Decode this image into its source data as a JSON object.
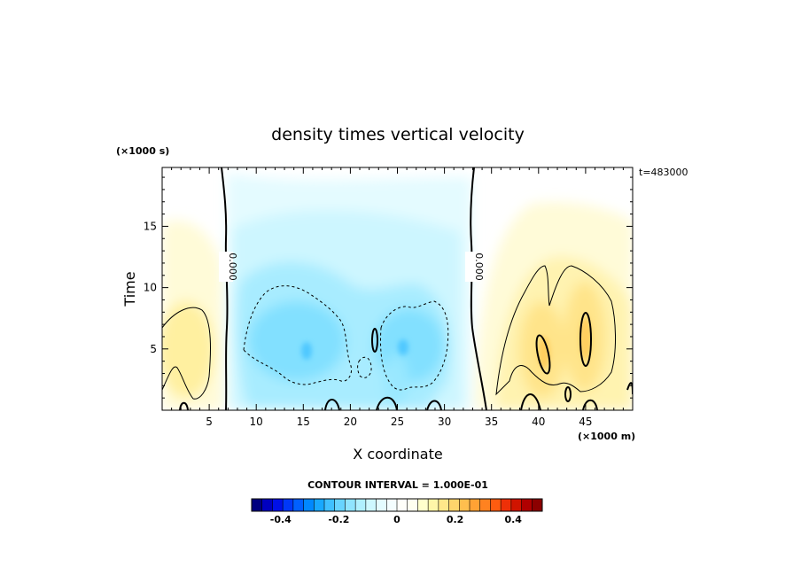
{
  "chart_data": {
    "type": "heatmap",
    "title": "density times vertical velocity",
    "xlabel": "X coordinate",
    "ylabel": "Time",
    "x_unit_label": "(×1000 m)",
    "y_unit_label": "(×1000 s)",
    "annotation_time": "t=483000",
    "contour_interval_label": "CONTOUR INTERVAL = 1.000E-01",
    "xlim": [
      0,
      50
    ],
    "ylim": [
      0,
      19.8
    ],
    "x_ticks": [
      {
        "value": 5,
        "label": "5"
      },
      {
        "value": 10,
        "label": "10"
      },
      {
        "value": 15,
        "label": "15"
      },
      {
        "value": 20,
        "label": "20"
      },
      {
        "value": 25,
        "label": "25"
      },
      {
        "value": 30,
        "label": "30"
      },
      {
        "value": 35,
        "label": "35"
      },
      {
        "value": 40,
        "label": "40"
      },
      {
        "value": 45,
        "label": "45"
      }
    ],
    "y_ticks": [
      {
        "value": 5,
        "label": "5"
      },
      {
        "value": 10,
        "label": "10"
      },
      {
        "value": 15,
        "label": "15"
      }
    ],
    "zero_contour_labels": [
      {
        "x": 7.0,
        "y": 11.8,
        "label": "0.000"
      },
      {
        "x": 32.9,
        "y": 11.8,
        "label": "0.000"
      }
    ],
    "colorbar": {
      "vmin": -0.5,
      "vmax": 0.5,
      "ticks": [
        {
          "value": -0.4,
          "label": "-0.4"
        },
        {
          "value": -0.2,
          "label": "-0.2"
        },
        {
          "value": 0,
          "label": "0"
        },
        {
          "value": 0.2,
          "label": "0.2"
        },
        {
          "value": 0.4,
          "label": "0.4"
        }
      ],
      "colors": [
        "#000080",
        "#0000c0",
        "#0010e8",
        "#0038f8",
        "#0060ff",
        "#0088ff",
        "#18a8ff",
        "#40c0ff",
        "#68d4ff",
        "#90e4ff",
        "#b0f0ff",
        "#cef8ff",
        "#e4fcff",
        "#f4feff",
        "#fffffa",
        "#fffff0",
        "#ffffcc",
        "#fff6a8",
        "#ffe88a",
        "#ffd56c",
        "#ffbe4e",
        "#ffa234",
        "#ff8220",
        "#ff5c10",
        "#ee3008",
        "#d01400",
        "#b00000",
        "#8c0000"
      ]
    }
  }
}
